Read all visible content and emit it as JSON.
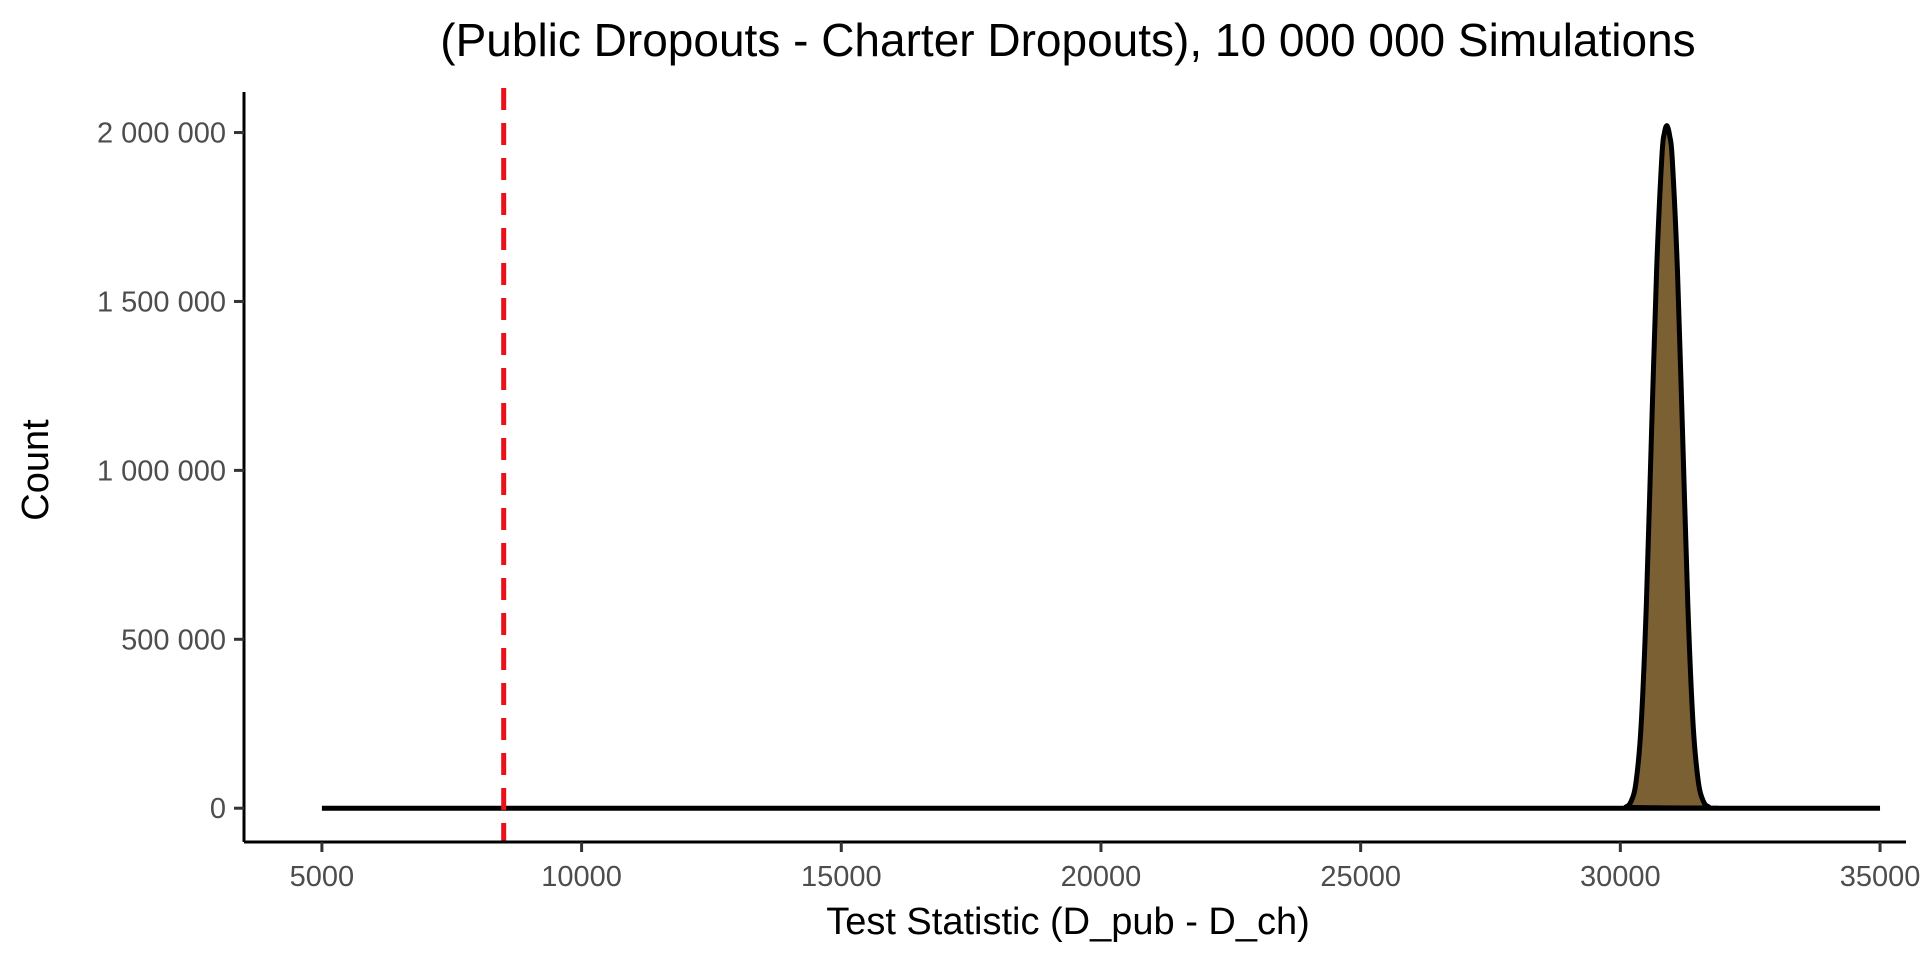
{
  "chart_data": {
    "type": "area",
    "title": "(Public Dropouts - Charter Dropouts), 10 000 000 Simulations",
    "xlabel": "Test Statistic (D_pub - D_ch)",
    "ylabel": "Count",
    "xlim": [
      3500,
      35500
    ],
    "ylim": [
      -100000,
      2120000
    ],
    "x_ticks": [
      5000,
      10000,
      15000,
      20000,
      25000,
      30000,
      35000
    ],
    "x_tick_labels": [
      "5000",
      "10000",
      "15000",
      "20000",
      "25000",
      "30000",
      "35000"
    ],
    "y_ticks": [
      0,
      500000,
      1000000,
      1500000,
      2000000
    ],
    "y_tick_labels": [
      "0",
      "500 000",
      "1 000 000",
      "1 500 000",
      "2 000 000"
    ],
    "series": [
      {
        "x": [
          5000,
          30000,
          30100,
          30200,
          30300,
          30400,
          30500,
          30600,
          30700,
          30800,
          30850,
          30900,
          30950,
          31000,
          31100,
          31200,
          31300,
          31400,
          31500,
          31600,
          31700,
          31800,
          35000
        ],
        "y": [
          0,
          0,
          3000,
          18000,
          75000,
          245000,
          600000,
          1110000,
          1600000,
          1930000,
          2000000,
          2020000,
          1990000,
          1920000,
          1590000,
          1100000,
          600000,
          250000,
          80000,
          20000,
          4000,
          0,
          0
        ],
        "fill": "#7a6033",
        "stroke": "#000000"
      }
    ],
    "reference_line": {
      "x": 8500,
      "color": "#e8131a",
      "style": "dashed"
    },
    "grid": false,
    "legend": "none"
  }
}
